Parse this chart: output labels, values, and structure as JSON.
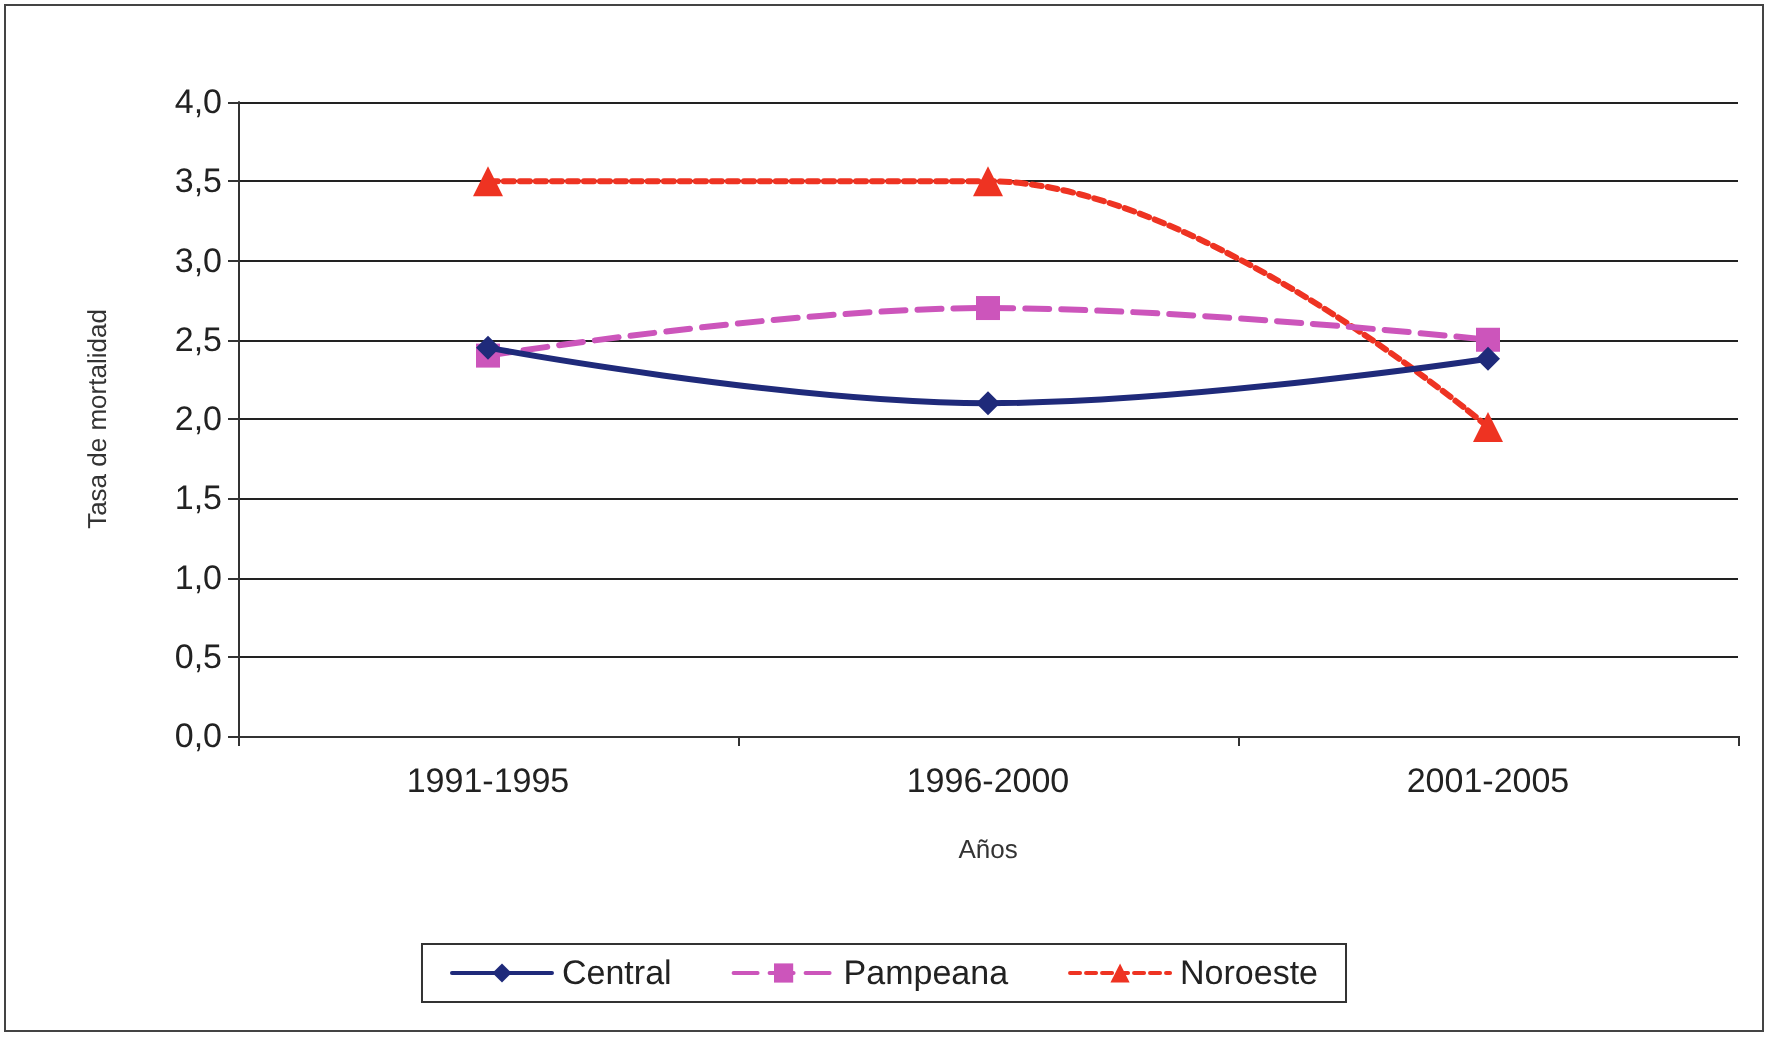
{
  "chart_data": {
    "type": "line",
    "xlabel": "Años",
    "ylabel": "Tasa de mortalidad",
    "categories": [
      "1991-1995",
      "1996-2000",
      "2001-2005"
    ],
    "series": [
      {
        "name": "Central",
        "color": "#1f2a7a",
        "values": [
          2.45,
          2.1,
          2.38
        ],
        "marker": "diamond",
        "line_style": "solid"
      },
      {
        "name": "Pampeana",
        "color": "#cc55bb",
        "values": [
          2.4,
          2.7,
          2.5
        ],
        "marker": "square",
        "line_style": "dashed"
      },
      {
        "name": "Noroeste",
        "color": "#ee3322",
        "values": [
          3.5,
          3.5,
          1.95
        ],
        "marker": "triangle",
        "line_style": "dotted"
      }
    ],
    "ylim": [
      0,
      4
    ],
    "yticks": [
      {
        "value": 0,
        "label": "0,0"
      },
      {
        "value": 0.5,
        "label": "0,5"
      },
      {
        "value": 1,
        "label": "1,0"
      },
      {
        "value": 1.5,
        "label": "1,5"
      },
      {
        "value": 2,
        "label": "2,0"
      },
      {
        "value": 2.5,
        "label": "2,5"
      },
      {
        "value": 3,
        "label": "3,0"
      },
      {
        "value": 3.5,
        "label": "3,5"
      },
      {
        "value": 4,
        "label": "4,0"
      }
    ],
    "grid": "y",
    "legend": "bottom"
  }
}
